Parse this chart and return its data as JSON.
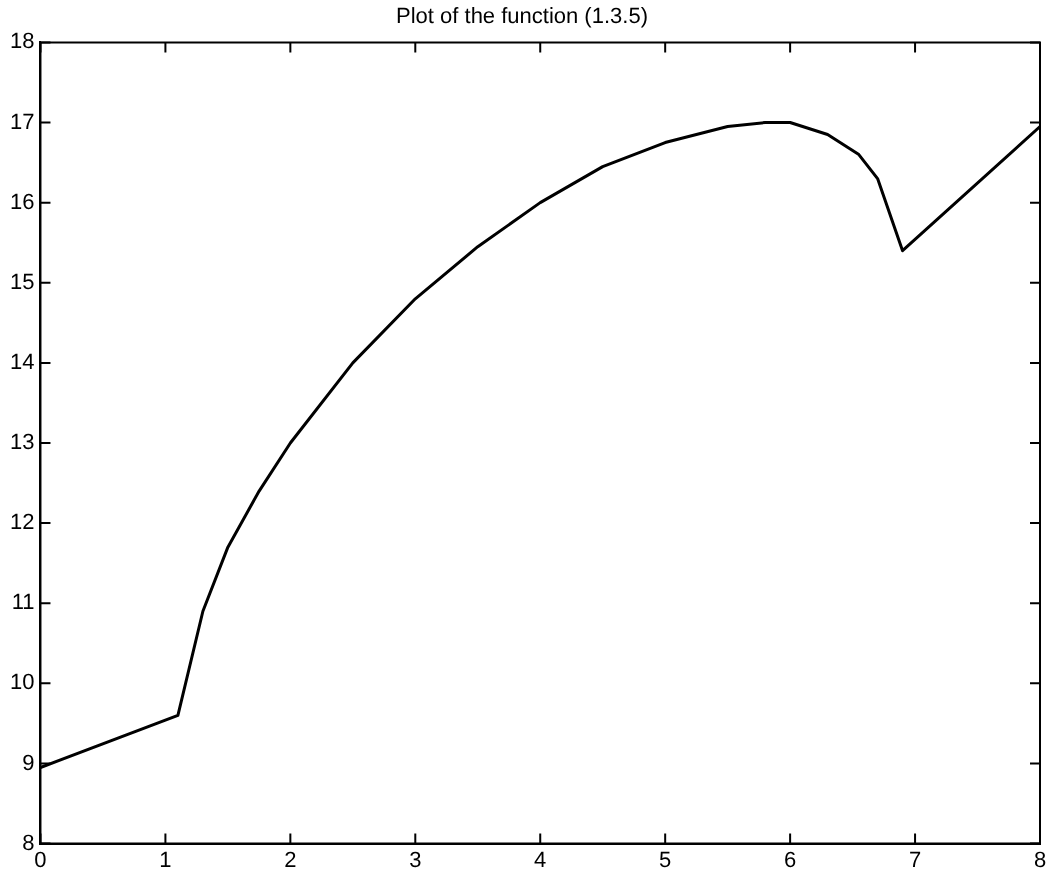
{
  "chart_data": {
    "type": "line",
    "title": "Plot of the function (1.3.5)",
    "x": [
      0,
      1.1,
      1.3,
      1.5,
      1.75,
      2,
      2.5,
      3,
      3.5,
      4,
      4.5,
      5,
      5.5,
      5.8,
      6,
      6.3,
      6.55,
      6.7,
      6.9,
      8
    ],
    "series": [
      {
        "color": "#000000",
        "values": [
          8.95,
          9.6,
          10.9,
          11.7,
          12.4,
          13.0,
          14.0,
          14.8,
          15.45,
          16.0,
          16.45,
          16.75,
          16.95,
          17.0,
          17.0,
          16.85,
          16.6,
          16.3,
          15.4,
          16.95
        ]
      }
    ],
    "xlim": [
      0,
      8
    ],
    "xticks": [
      0,
      1,
      2,
      3,
      4,
      5,
      6,
      7,
      8
    ],
    "ylim": [
      8,
      18
    ],
    "yticks": [
      8,
      9,
      10,
      11,
      12,
      13,
      14,
      15,
      16,
      17,
      18
    ],
    "grid": false,
    "legend": false,
    "marker": "none",
    "line_style": "solid"
  }
}
